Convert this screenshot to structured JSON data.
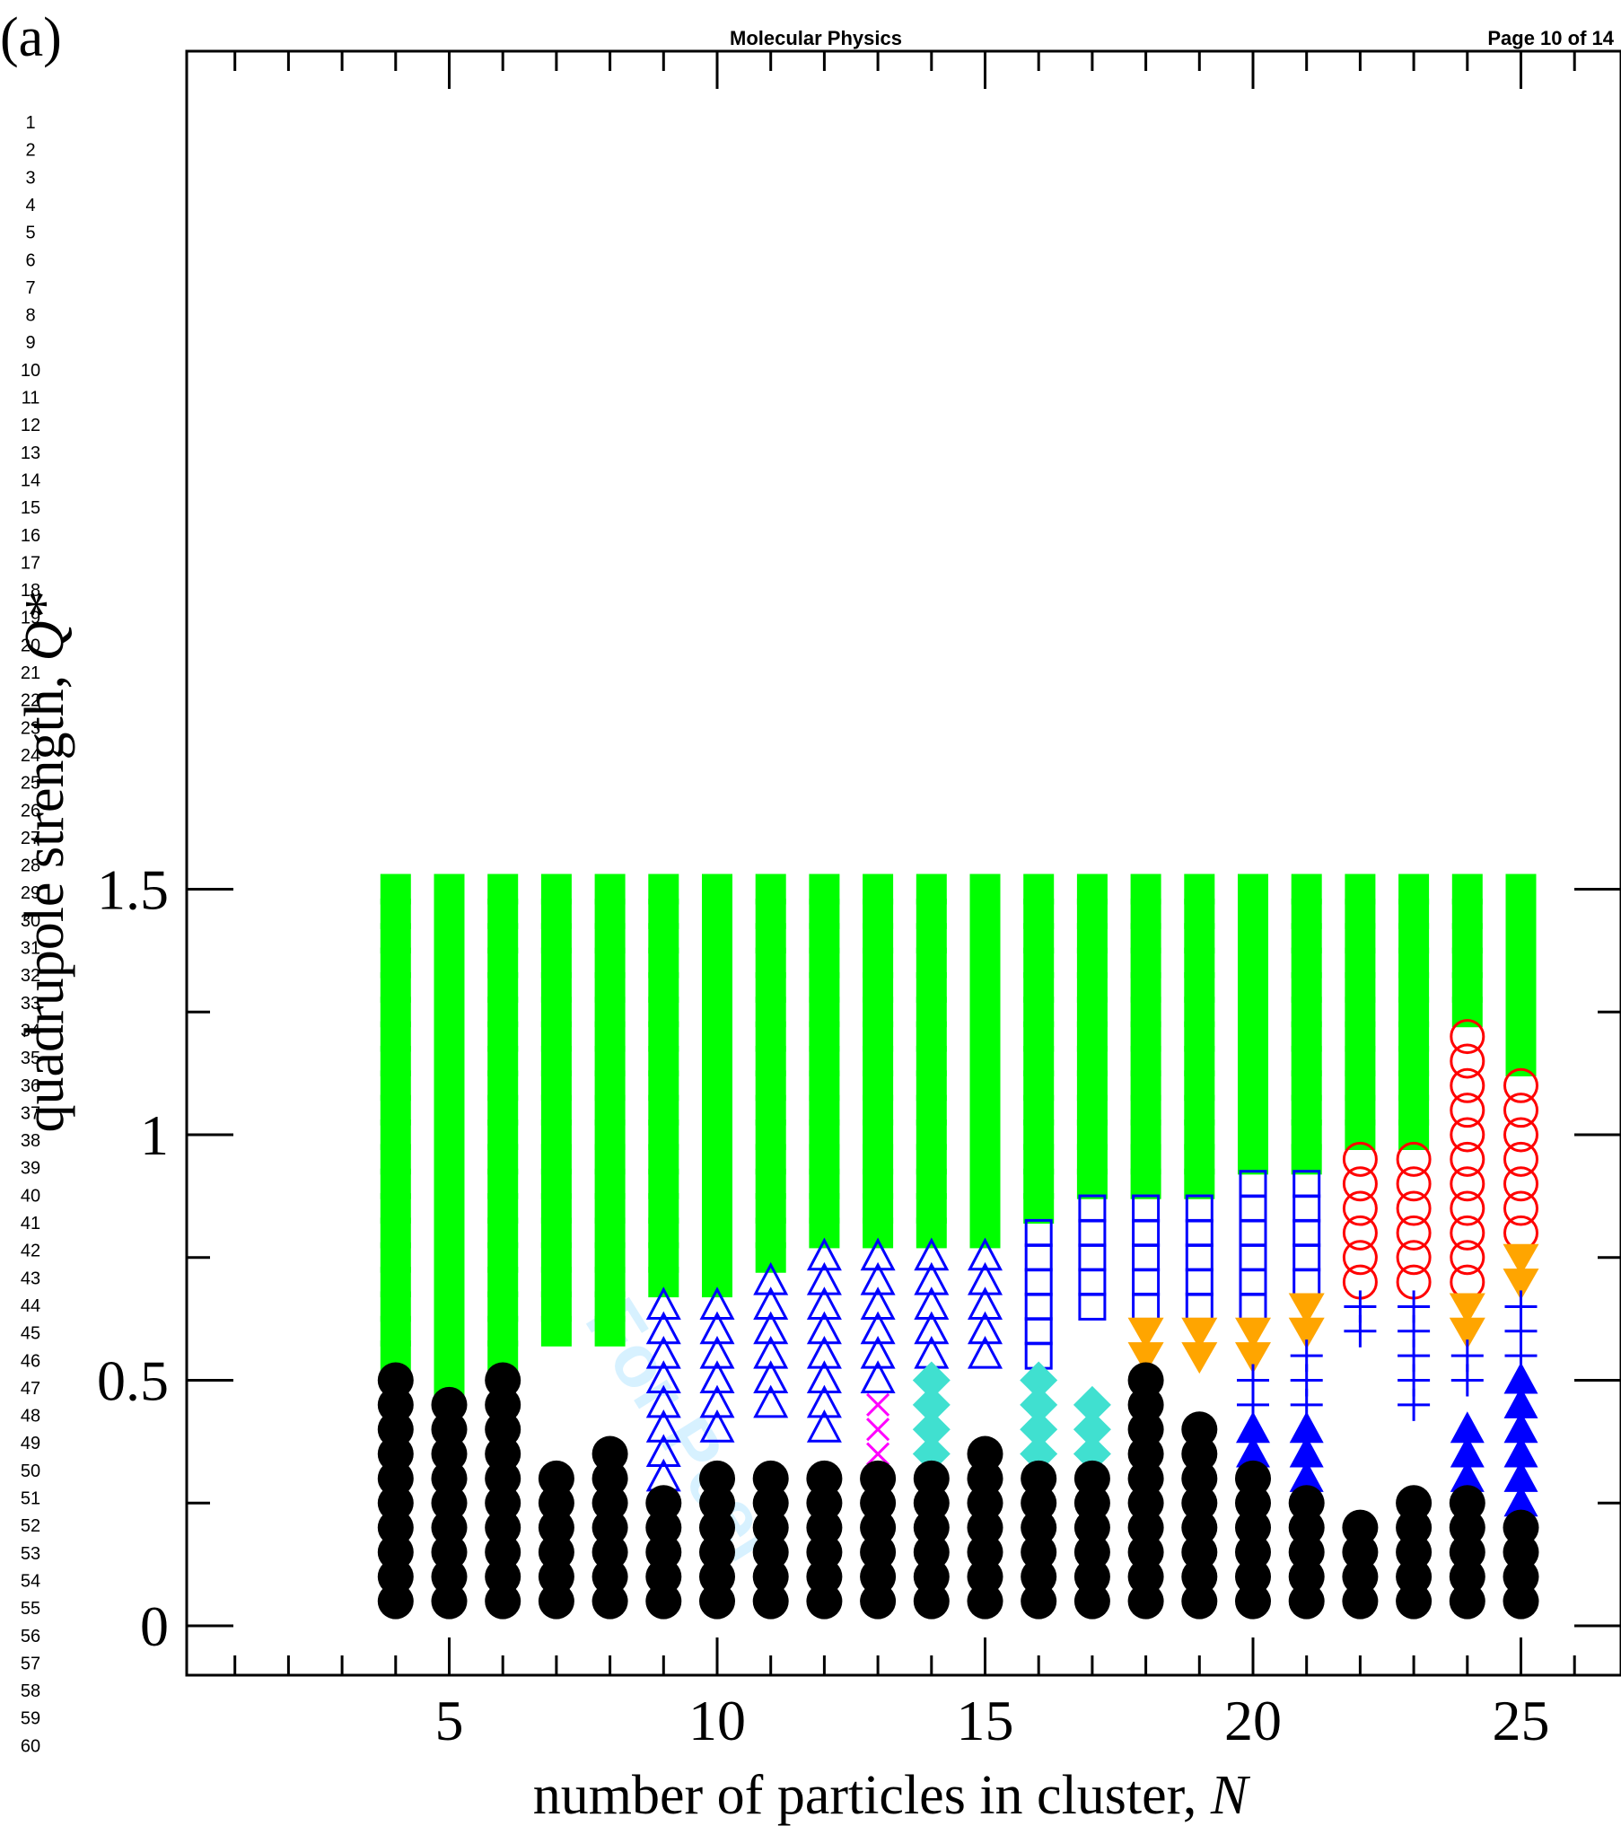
{
  "header": {
    "journal": "Molecular Physics",
    "page": "Page 10 of 14",
    "watermark": "For Peer"
  },
  "panel_label": "(a)",
  "line_numbers": [
    "1",
    "2",
    "3",
    "4",
    "5",
    "6",
    "7",
    "8",
    "9",
    "10",
    "11",
    "12",
    "13",
    "14",
    "15",
    "16",
    "17",
    "18",
    "19",
    "20",
    "21",
    "22",
    "23",
    "24",
    "25",
    "26",
    "27",
    "28",
    "29",
    "30",
    "31",
    "32",
    "33",
    "34",
    "35",
    "36",
    "37",
    "38",
    "39",
    "40",
    "41",
    "42",
    "43",
    "44",
    "45",
    "46",
    "47",
    "48",
    "49",
    "50",
    "51",
    "52",
    "53",
    "54",
    "55",
    "56",
    "57",
    "58",
    "59",
    "60"
  ],
  "chart_data": {
    "type": "scatter",
    "title": "",
    "xlabel": "number of particles in cluster, ",
    "xlabel_var": "N",
    "ylabel": "quadrupole strength, ",
    "ylabel_var": "Q*",
    "xlim": [
      0,
      27
    ],
    "ylim": [
      -0.1,
      1.6
    ],
    "xticks": [
      "5",
      "10",
      "15",
      "20",
      "25"
    ],
    "yticks": [
      "0",
      "0.5",
      "1",
      "1.5"
    ],
    "ytick_values": [
      0,
      0.5,
      1,
      1.5
    ],
    "xtick_values": [
      5,
      10,
      15,
      20,
      25
    ],
    "colors": {
      "green_square": "#00ff00",
      "black_circle": "#000000",
      "blue_triangle": "#0000ff",
      "blue_square": "#0000ff",
      "red_circle": "#ff0000",
      "orange_triangle": "#ffa500",
      "blue_plus": "#0000ff",
      "filled_blue_triangle": "#0000ff",
      "turquoise_diamond": "#40e0d0",
      "magenta_x": "#ff00ff"
    },
    "marker_codes": {
      "G": "green filled square",
      "K": "black filled circle",
      "T": "blue open triangle",
      "S": "blue open square",
      "R": "red open circle",
      "O": "orange filled down-triangle",
      "P": "blue plus",
      "F": "blue filled triangle",
      "D": "turquoise filled diamond",
      "X": "magenta cross",
      ".": "no marker"
    },
    "grid_x": [
      4,
      5,
      6,
      7,
      8,
      9,
      10,
      11,
      12,
      13,
      14,
      15,
      16,
      17,
      18,
      19,
      20,
      21,
      22,
      23,
      24,
      25
    ],
    "grid_rows": [
      {
        "q": 1.5,
        "markers": "GGGGGGGGGGGGGGGGGGGGGG"
      },
      {
        "q": 1.45,
        "markers": "GGGGGGGGGGGGGGGGGGGGGG"
      },
      {
        "q": 1.4,
        "markers": "GGGGGGGGGGGGGGGGGGGGGG"
      },
      {
        "q": 1.35,
        "markers": "GGGGGGGGGGGGGGGGGGGGGG"
      },
      {
        "q": 1.3,
        "markers": "GGGGGGGGGGGGGGGGGGGGGG"
      },
      {
        "q": 1.25,
        "markers": "GGGGGGGGGGGGGGGGGGGGGG"
      },
      {
        "q": 1.2,
        "markers": "GGGGGGGGGGGGGGGGGGGGRG"
      },
      {
        "q": 1.15,
        "markers": "GGGGGGGGGGGGGGGGGGGGRG"
      },
      {
        "q": 1.1,
        "markers": "GGGGGGGGGGGGGGGGGGGGRR"
      },
      {
        "q": 1.05,
        "markers": "GGGGGGGGGGGGGGGGGGGGRR"
      },
      {
        "q": 1.0,
        "markers": "GGGGGGGGGGGGGGGGGGGGRR"
      },
      {
        "q": 0.95,
        "markers": "GGGGGGGGGGGGGGGGGGRRRR"
      },
      {
        "q": 0.9,
        "markers": "GGGGGGGGGGGGGGGGSSRRRR"
      },
      {
        "q": 0.85,
        "markers": "GGGGGGGGGGGGGSSSSSRRRR"
      },
      {
        "q": 0.8,
        "markers": "GGGGGGGGGGGGSSSSSSRRRR"
      },
      {
        "q": 0.75,
        "markers": "GGGGGGGGTTTTSSSSSSRRRO"
      },
      {
        "q": 0.7,
        "markers": "GGGGGGGTTTTTSSSSSSRRRO"
      },
      {
        "q": 0.65,
        "markers": "GGGGGTTTTTTTSSSSSOPPOP"
      },
      {
        "q": 0.6,
        "markers": "GGGGGTTTTTTTS.OOOOPPOP"
      },
      {
        "q": 0.55,
        "markers": "GGG..TTTTTTTS.OOOP.PPP"
      },
      {
        "q": 0.5,
        "markers": "KGK..TTTTTD.D.K.PP.PPF"
      },
      {
        "q": 0.45,
        "markers": "KKK..TTTTXD.DDK.PP.P.F"
      },
      {
        "q": 0.4,
        "markers": "KKK..TT.TXD.DDKKFF..FF"
      },
      {
        "q": 0.35,
        "markers": "KKK.KT...XDKDDKKFF..FF"
      },
      {
        "q": 0.3,
        "markers": "KKKKKTKKKKKKKKKKKF..FF"
      },
      {
        "q": 0.25,
        "markers": "KKKKKKKKKKKKKKKKKK.KKF"
      },
      {
        "q": 0.2,
        "markers": "KKKKKKKKKKKKKKKKKKKKKK"
      },
      {
        "q": 0.15,
        "markers": "KKKKKKKKKKKKKKKKKKKKKK"
      },
      {
        "q": 0.1,
        "markers": "KKKKKKKKKKKKKKKKKKKKKK"
      },
      {
        "q": 0.05,
        "markers": "KKKKKKKKKKKKKKKKKKKKKK"
      }
    ]
  }
}
